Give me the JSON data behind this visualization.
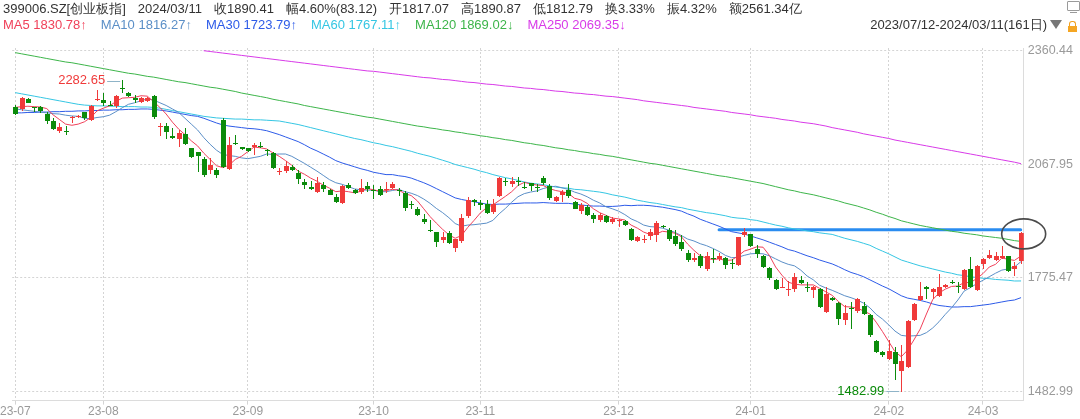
{
  "chart_data": {
    "type": "candlestick",
    "title": "399006.SZ[创业板指]",
    "subtitle": "2023/07/12-2024/03/11(161日)",
    "annotations": [
      "2024/03/11",
      "收1890.41",
      "幅4.60%(83.12)",
      "开1817.07",
      "高1890.87",
      "低1812.79",
      "换3.33%",
      "振4.32%",
      "额2561.34亿"
    ],
    "categories": [
      "23-07",
      null,
      null,
      null,
      null,
      null,
      null,
      null,
      null,
      null,
      null,
      null,
      null,
      null,
      "23-08",
      null,
      null,
      null,
      null,
      null,
      null,
      null,
      null,
      null,
      null,
      null,
      null,
      null,
      null,
      null,
      null,
      null,
      null,
      null,
      null,
      null,
      null,
      "23-09",
      null,
      null,
      null,
      null,
      null,
      null,
      null,
      null,
      null,
      null,
      null,
      null,
      null,
      null,
      null,
      null,
      null,
      null,
      null,
      "23-10",
      null,
      null,
      null,
      null,
      null,
      null,
      null,
      null,
      null,
      null,
      null,
      null,
      null,
      null,
      null,
      null,
      "23-11",
      null,
      null,
      null,
      null,
      null,
      null,
      null,
      null,
      null,
      null,
      null,
      null,
      null,
      null,
      null,
      null,
      null,
      null,
      null,
      null,
      null,
      "23-12",
      null,
      null,
      null,
      null,
      null,
      null,
      null,
      null,
      null,
      null,
      null,
      null,
      null,
      null,
      null,
      null,
      null,
      null,
      null,
      null,
      "24-01",
      null,
      null,
      null,
      null,
      null,
      null,
      null,
      null,
      null,
      null,
      null,
      null,
      null,
      null,
      null,
      null,
      null,
      null,
      null,
      null,
      null,
      "24-02",
      null,
      null,
      null,
      null,
      null,
      null,
      null,
      null,
      null,
      null,
      null,
      null,
      null,
      null,
      "24-03",
      null,
      null,
      null,
      null,
      null,
      null
    ],
    "ylim": [
      1459,
      2367
    ],
    "yticks": [
      1482.99,
      1775.47,
      2067.95,
      2360.44
    ],
    "grid": true,
    "legend": "top left",
    "ohlc": [
      [
        2216,
        2219,
        2195,
        2197
      ],
      [
        2208,
        2240,
        2206,
        2238
      ],
      [
        2236,
        2236,
        2226,
        2226
      ],
      [
        2215,
        2215,
        2203,
        2211
      ],
      [
        2215,
        2216,
        2202,
        2203
      ],
      [
        2197,
        2200,
        2172,
        2178
      ],
      [
        2180,
        2186,
        2156,
        2159
      ],
      [
        2153,
        2172,
        2150,
        2163
      ],
      [
        2154,
        2166,
        2144,
        2151
      ],
      [
        2186,
        2191,
        2176,
        2191
      ],
      [
        2188,
        2192,
        2188,
        2192
      ],
      [
        2202,
        2202,
        2183,
        2186
      ],
      [
        2180,
        2219,
        2180,
        2219
      ],
      [
        2233,
        2258,
        2233,
        2236
      ],
      [
        2234,
        2249,
        2219,
        2226
      ],
      [
        2222,
        2229,
        2221,
        2221
      ],
      [
        2216,
        2245,
        2215,
        2243
      ],
      [
        2265,
        2282.65,
        2252,
        2262
      ],
      [
        2253,
        2253,
        2243,
        2243
      ],
      [
        2239,
        2245,
        2227,
        2232
      ],
      [
        2227,
        2240,
        2227,
        2240
      ],
      [
        2229,
        2240,
        2229,
        2240
      ],
      [
        2243,
        2245,
        2186,
        2189
      ],
      [
        2163,
        2172,
        2142,
        2167
      ],
      [
        2167,
        2172,
        2133,
        2150
      ],
      [
        2140,
        2159,
        2133,
        2135
      ],
      [
        2131,
        2154,
        2114,
        2148
      ],
      [
        2146,
        2159,
        2118,
        2120
      ],
      [
        2109,
        2109,
        2086,
        2086
      ],
      [
        2099,
        2099,
        2049,
        2088
      ],
      [
        2083,
        2086,
        2037,
        2039
      ],
      [
        2051,
        2082,
        2043,
        2066
      ],
      [
        2054,
        2057,
        2034,
        2040
      ],
      [
        2183,
        2185,
        2058,
        2060
      ],
      [
        2056,
        2137,
        2054,
        2118
      ],
      [
        2122,
        2142,
        2118,
        2118
      ],
      [
        2112,
        2112,
        2105,
        2105
      ],
      [
        2109,
        2109,
        2100,
        2100
      ],
      [
        2111,
        2121,
        2092,
        2118
      ],
      [
        2114,
        2123,
        2111,
        2111
      ],
      [
        2105,
        2105,
        2090,
        2101
      ],
      [
        2097,
        2099,
        2056,
        2057
      ],
      [
        2048,
        2057,
        2040,
        2051
      ],
      [
        2050,
        2075,
        2047,
        2063
      ],
      [
        2062,
        2064,
        2051,
        2053
      ],
      [
        2045,
        2051,
        2017,
        2028
      ],
      [
        2023,
        2028,
        2006,
        2013
      ],
      [
        2010,
        2023,
        2003,
        2003
      ],
      [
        1996,
        2034,
        1994,
        2021
      ],
      [
        2015,
        2020,
        1997,
        2004
      ],
      [
        2002,
        2002,
        1989,
        1989
      ],
      [
        1983,
        1991,
        1968,
        1970
      ],
      [
        1966,
        2013,
        1966,
        2013
      ],
      [
        2015,
        2017,
        2004,
        2007
      ],
      [
        2002,
        2002,
        1993,
        1993
      ],
      [
        1996,
        2028,
        1993,
        2006
      ],
      [
        2013,
        2020,
        1997,
        2004
      ],
      [
        2003,
        2013,
        1980,
        1999
      ],
      [
        2004,
        2011,
        1987,
        1989
      ],
      [
        2001,
        2021,
        1994,
        2004
      ],
      [
        2006,
        2021,
        2004,
        2018
      ],
      [
        2003,
        2006,
        1987,
        1997
      ],
      [
        1994,
        1997,
        1948,
        1954
      ],
      [
        1965,
        1972,
        1953,
        1961
      ],
      [
        1953,
        1956,
        1936,
        1937
      ],
      [
        1927,
        1937,
        1914,
        1917
      ],
      [
        1900,
        1923,
        1894,
        1897
      ],
      [
        1893,
        1893,
        1857,
        1867
      ],
      [
        1873,
        1893,
        1865,
        1882
      ],
      [
        1891,
        1894,
        1863,
        1865
      ],
      [
        1852,
        1875,
        1843,
        1875
      ],
      [
        1870,
        1937,
        1867,
        1929
      ],
      [
        1934,
        1983,
        1931,
        1976
      ],
      [
        1976,
        1978,
        1961,
        1970
      ],
      [
        1968,
        1974,
        1951,
        1961
      ],
      [
        1966,
        1974,
        1940,
        1942
      ],
      [
        1944,
        1977,
        1942,
        1967
      ],
      [
        1985,
        2034,
        1984,
        2032
      ],
      [
        2025,
        2030,
        2013,
        2021
      ],
      [
        2017,
        2034,
        2011,
        2024
      ],
      [
        2024,
        2034,
        2013,
        2021
      ],
      [
        2009,
        2020,
        2006,
        2006
      ],
      [
        2019,
        2019,
        2000,
        2012
      ],
      [
        2009,
        2015,
        1997,
        2006
      ],
      [
        2032,
        2035,
        2016,
        2019
      ],
      [
        2013,
        2016,
        1978,
        1980
      ],
      [
        1972,
        1985,
        1972,
        1985
      ],
      [
        1989,
        1999,
        1972,
        1996
      ],
      [
        2003,
        2015,
        1982,
        1985
      ],
      [
        1972,
        1972,
        1953,
        1953
      ],
      [
        1946,
        1966,
        1940,
        1963
      ],
      [
        1959,
        1961,
        1936,
        1937
      ],
      [
        1937,
        1940,
        1917,
        1927
      ],
      [
        1923,
        1940,
        1920,
        1937
      ],
      [
        1934,
        1936,
        1917,
        1918
      ],
      [
        1917,
        1930,
        1915,
        1927
      ],
      [
        1923,
        1926,
        1908,
        1926
      ],
      [
        1923,
        1923,
        1910,
        1910
      ],
      [
        1901,
        1901,
        1872,
        1872
      ],
      [
        1869,
        1882,
        1869,
        1882
      ],
      [
        1875,
        1884,
        1865,
        1877
      ],
      [
        1882,
        1899,
        1875,
        1893
      ],
      [
        1884,
        1920,
        1869,
        1917
      ],
      [
        1910,
        1910,
        1905,
        1905
      ],
      [
        1899,
        1901,
        1872,
        1874
      ],
      [
        1884,
        1897,
        1858,
        1861
      ],
      [
        1869,
        1884,
        1845,
        1848
      ],
      [
        1839,
        1845,
        1817,
        1820
      ],
      [
        1820,
        1837,
        1817,
        1827
      ],
      [
        1831,
        1834,
        1802,
        1804
      ],
      [
        1796,
        1841,
        1793,
        1831
      ],
      [
        1828,
        1848,
        1815,
        1826
      ],
      [
        1822,
        1837,
        1820,
        1831
      ],
      [
        1828,
        1828,
        1800,
        1808
      ],
      [
        1813,
        1822,
        1798,
        1809
      ],
      [
        1807,
        1880,
        1807,
        1880
      ],
      [
        1884,
        1901,
        1882,
        1893
      ],
      [
        1888,
        1888,
        1857,
        1857
      ],
      [
        1851,
        1858,
        1828,
        1837
      ],
      [
        1832,
        1832,
        1802,
        1802
      ],
      [
        1800,
        1802,
        1772,
        1774
      ],
      [
        1771,
        1771,
        1745,
        1745
      ],
      [
        1749,
        1774,
        1749,
        1752
      ],
      [
        1744,
        1765,
        1729,
        1747
      ],
      [
        1747,
        1787,
        1740,
        1777
      ],
      [
        1771,
        1779,
        1760,
        1762
      ],
      [
        1753,
        1762,
        1741,
        1748
      ],
      [
        1742,
        1753,
        1725,
        1753
      ],
      [
        1748,
        1748,
        1698,
        1699
      ],
      [
        1686,
        1751,
        1686,
        1734
      ],
      [
        1725,
        1725,
        1717,
        1717
      ],
      [
        1711,
        1711,
        1656,
        1668
      ],
      [
        1665,
        1704,
        1656,
        1686
      ],
      [
        1697,
        1712,
        1644,
        1693
      ],
      [
        1688,
        1721,
        1686,
        1721
      ],
      [
        1704,
        1712,
        1680,
        1682
      ],
      [
        1680,
        1680,
        1625,
        1626
      ],
      [
        1613,
        1613,
        1582,
        1583
      ],
      [
        1585,
        1585,
        1573,
        1575
      ],
      [
        1566,
        1613,
        1566,
        1588
      ],
      [
        1585,
        1596,
        1513,
        1553
      ],
      [
        1534,
        1601,
        1482.99,
        1562
      ],
      [
        1545,
        1665,
        1545,
        1665
      ],
      [
        1665,
        1708,
        1665,
        1708
      ],
      [
        1717,
        1764,
        1717,
        1728
      ],
      [
        1751,
        1753,
        1723,
        1747
      ],
      [
        1738,
        1747,
        1721,
        1747
      ],
      [
        1729,
        1783,
        1728,
        1751
      ],
      [
        1751,
        1758,
        1751,
        1758
      ],
      [
        1765,
        1767,
        1760,
        1760
      ],
      [
        1755,
        1764,
        1738,
        1752
      ],
      [
        1747,
        1796,
        1745,
        1796
      ],
      [
        1798,
        1828,
        1751,
        1751
      ],
      [
        1742,
        1807,
        1742,
        1807
      ],
      [
        1811,
        1824,
        1798,
        1824
      ],
      [
        1826,
        1845,
        1826,
        1835
      ],
      [
        1820,
        1841,
        1820,
        1832
      ],
      [
        1826,
        1857,
        1826,
        1831
      ],
      [
        1831,
        1831,
        1791,
        1793
      ],
      [
        1796,
        1814,
        1781,
        1807
      ],
      [
        1817.07,
        1890.87,
        1812.79,
        1890.41
      ]
    ],
    "value_labels": [
      null,
      null,
      null,
      null,
      null,
      null,
      null,
      null,
      null,
      null,
      null,
      null,
      null,
      null,
      null,
      null,
      null,
      "2282.65",
      null,
      null,
      null,
      null,
      null,
      null,
      null,
      null,
      null,
      null,
      null,
      null,
      null,
      null,
      null,
      null,
      null,
      null,
      null,
      null,
      null,
      null,
      null,
      null,
      null,
      null,
      null,
      null,
      null,
      null,
      null,
      null,
      null,
      null,
      null,
      null,
      null,
      null,
      null,
      null,
      null,
      null,
      null,
      null,
      null,
      null,
      null,
      null,
      null,
      null,
      null,
      null,
      null,
      null,
      null,
      null,
      null,
      null,
      null,
      null,
      null,
      null,
      null,
      null,
      null,
      null,
      null,
      null,
      null,
      null,
      null,
      null,
      null,
      null,
      null,
      null,
      null,
      null,
      null,
      null,
      null,
      null,
      null,
      null,
      null,
      null,
      null,
      null,
      null,
      null,
      null,
      null,
      null,
      null,
      null,
      null,
      null,
      null,
      null,
      null,
      null,
      null,
      null,
      null,
      null,
      null,
      null,
      null,
      null,
      null,
      null,
      null,
      null,
      null,
      null,
      null,
      null,
      null,
      null,
      null,
      null,
      null,
      null,
      "1482.99",
      null,
      null,
      null,
      null,
      null,
      null,
      null,
      null,
      null,
      null,
      null,
      null,
      null,
      null,
      null,
      null,
      null,
      null,
      null
    ],
    "colors": [
      "#0b8b0b",
      "#f03a3a",
      "#0b8b0b",
      "#0b8b0b",
      "#0b8b0b",
      "#0b8b0b",
      "#0b8b0b",
      "#f03a3a",
      "#0b8b0b",
      "#f03a3a",
      "#f03a3a",
      "#0b8b0b",
      "#f03a3a",
      "#f03a3a",
      "#0b8b0b",
      "#0b8b0b",
      "#f03a3a",
      "#0b8b0b",
      "#0b8b0b",
      "#0b8b0b",
      "#f03a3a",
      "#f03a3a",
      "#0b8b0b",
      "#f03a3a",
      "#0b8b0b",
      "#0b8b0b",
      "#f03a3a",
      "#0b8b0b",
      "#0b8b0b",
      "#0b8b0b",
      "#0b8b0b",
      "#f03a3a",
      "#0b8b0b",
      "#0b8b0b",
      "#f03a3a",
      "#0b8b0b",
      "#0b8b0b",
      "#0b8b0b",
      "#f03a3a",
      "#0b8b0b",
      "#0b8b0b",
      "#0b8b0b",
      "#f03a3a",
      "#f03a3a",
      "#0b8b0b",
      "#0b8b0b",
      "#0b8b0b",
      "#0b8b0b",
      "#f03a3a",
      "#0b8b0b",
      "#0b8b0b",
      "#0b8b0b",
      "#f03a3a",
      "#0b8b0b",
      "#0b8b0b",
      "#f03a3a",
      "#0b8b0b",
      "#0b8b0b",
      "#0b8b0b",
      "#f03a3a",
      "#f03a3a",
      "#0b8b0b",
      "#0b8b0b",
      "#0b8b0b",
      "#0b8b0b",
      "#0b8b0b",
      "#0b8b0b",
      "#0b8b0b",
      "#f03a3a",
      "#0b8b0b",
      "#f03a3a",
      "#f03a3a",
      "#f03a3a",
      "#0b8b0b",
      "#0b8b0b",
      "#0b8b0b",
      "#f03a3a",
      "#f03a3a",
      "#0b8b0b",
      "#f03a3a",
      "#0b8b0b",
      "#0b8b0b",
      "#0b8b0b",
      "#0b8b0b",
      "#0b8b0b",
      "#0b8b0b",
      "#f03a3a",
      "#f03a3a",
      "#0b8b0b",
      "#0b8b0b",
      "#f03a3a",
      "#0b8b0b",
      "#0b8b0b",
      "#f03a3a",
      "#0b8b0b",
      "#f03a3a",
      "#f03a3a",
      "#0b8b0b",
      "#0b8b0b",
      "#f03a3a",
      "#f03a3a",
      "#f03a3a",
      "#f03a3a",
      "#0b8b0b",
      "#0b8b0b",
      "#0b8b0b",
      "#0b8b0b",
      "#0b8b0b",
      "#f03a3a",
      "#0b8b0b",
      "#f03a3a",
      "#0b8b0b",
      "#f03a3a",
      "#0b8b0b",
      "#0b8b0b",
      "#f03a3a",
      "#f03a3a",
      "#0b8b0b",
      "#0b8b0b",
      "#0b8b0b",
      "#0b8b0b",
      "#0b8b0b",
      "#f03a3a",
      "#f03a3a",
      "#f03a3a",
      "#0b8b0b",
      "#0b8b0b",
      "#f03a3a",
      "#0b8b0b",
      "#f03a3a",
      "#0b8b0b",
      "#0b8b0b",
      "#f03a3a",
      "#0b8b0b",
      "#f03a3a",
      "#0b8b0b",
      "#0b8b0b",
      "#0b8b0b",
      "#0b8b0b",
      "#f03a3a",
      "#0b8b0b",
      "#f03a3a",
      "#f03a3a",
      "#f03a3a",
      "#f03a3a",
      "#0b8b0b",
      "#f03a3a",
      "#f03a3a",
      "#f03a3a",
      "#0b8b0b",
      "#0b8b0b",
      "#f03a3a",
      "#0b8b0b",
      "#f03a3a",
      "#f03a3a",
      "#f03a3a",
      "#f03a3a",
      "#f03a3a",
      "#0b8b0b",
      "#f03a3a",
      "#f03a3a"
    ],
    "series": [
      {
        "type": "line",
        "name": "MA5 1830.78↑",
        "color": "#f0415a",
        "values": [
          2214,
          2216,
          2217,
          2216,
          2215,
          2211,
          2195,
          2183,
          2171,
          2168,
          2171,
          2177,
          2188,
          2205,
          2212,
          2218,
          2229,
          2238,
          2239,
          2240,
          2244,
          2243,
          2229,
          2214,
          2197,
          2176,
          2158,
          2144,
          2128,
          2115,
          2096,
          2080,
          2064,
          2059,
          2065,
          2080,
          2088,
          2100,
          2112,
          2110,
          2107,
          2097,
          2088,
          2077,
          2065,
          2050,
          2042,
          2032,
          2024,
          2014,
          2006,
          1997,
          1999,
          1997,
          1994,
          1998,
          2005,
          2002,
          1998,
          2000,
          2003,
          2001,
          1992,
          1987,
          1973,
          1953,
          1933,
          1916,
          1900,
          1886,
          1877,
          1884,
          1905,
          1923,
          1942,
          1956,
          1963,
          1974,
          1985,
          1997,
          2013,
          2021,
          2017,
          2014,
          2013,
          2005,
          2000,
          1997,
          1993,
          1980,
          1976,
          1967,
          1953,
          1943,
          1936,
          1929,
          1927,
          1924,
          1911,
          1903,
          1893,
          1887,
          1888,
          1895,
          1893,
          1890,
          1881,
          1862,
          1846,
          1832,
          1826,
          1822,
          1824,
          1820,
          1821,
          1831,
          1844,
          1849,
          1855,
          1854,
          1833,
          1803,
          1782,
          1764,
          1759,
          1757,
          1757,
          1757,
          1748,
          1739,
          1730,
          1714,
          1701,
          1700,
          1697,
          1690,
          1682,
          1661,
          1637,
          1611,
          1585,
          1572,
          1589,
          1615,
          1643,
          1682,
          1719,
          1736,
          1746,
          1753,
          1754,
          1763,
          1763,
          1773,
          1786,
          1803,
          1810,
          1826,
          1823,
          1820,
          1830.78
        ]
      },
      {
        "type": "line",
        "name": "MA10 1816.27↑",
        "color": "#5b8fc7",
        "values": [
          2210,
          2208,
          2206,
          2204,
          2202,
          2200,
          2198,
          2197,
          2194,
          2192,
          2191,
          2186,
          2185,
          2188,
          2190,
          2194,
          2203,
          2213,
          2222,
          2226,
          2231,
          2236,
          2233,
          2226,
          2219,
          2210,
          2201,
          2186,
          2171,
          2156,
          2136,
          2119,
          2104,
          2093,
          2090,
          2088,
          2084,
          2082,
          2085,
          2088,
          2094,
          2093,
          2094,
          2094,
          2088,
          2079,
          2070,
          2060,
          2050,
          2039,
          2028,
          2020,
          2016,
          2010,
          2004,
          2002,
          2001,
          2001,
          1997,
          1997,
          2000,
          2003,
          1997,
          1993,
          1987,
          1978,
          1967,
          1954,
          1943,
          1930,
          1915,
          1908,
          1911,
          1912,
          1914,
          1916,
          1923,
          1940,
          1954,
          1970,
          1984,
          1992,
          1996,
          1999,
          2005,
          2009,
          2011,
          2007,
          2003,
          1996,
          1991,
          1984,
          1975,
          1968,
          1958,
          1953,
          1947,
          1938,
          1927,
          1920,
          1911,
          1907,
          1906,
          1903,
          1898,
          1892,
          1884,
          1875,
          1870,
          1863,
          1858,
          1851,
          1843,
          1833,
          1827,
          1828,
          1833,
          1837,
          1838,
          1837,
          1832,
          1824,
          1816,
          1810,
          1806,
          1795,
          1780,
          1770,
          1756,
          1749,
          1743,
          1736,
          1729,
          1724,
          1718,
          1710,
          1698,
          1681,
          1669,
          1654,
          1638,
          1627,
          1625,
          1626,
          1627,
          1634,
          1646,
          1662,
          1681,
          1698,
          1718,
          1741,
          1750,
          1760,
          1769,
          1778,
          1787,
          1795,
          1798,
          1803,
          1816.27
        ]
      },
      {
        "type": "line",
        "name": "MA30 1723.79↑",
        "color": "#2d5be8",
        "values": [
          2200,
          2200,
          2201,
          2201,
          2202,
          2202,
          2203,
          2203,
          2204,
          2204,
          2205,
          2205,
          2206,
          2206,
          2207,
          2207,
          2208,
          2208,
          2209,
          2209,
          2210,
          2210,
          2209,
          2207,
          2205,
          2202,
          2199,
          2196,
          2193,
          2191,
          2186,
          2180,
          2174,
          2169,
          2166,
          2164,
          2162,
          2160,
          2159,
          2157,
          2154,
          2149,
          2144,
          2138,
          2132,
          2126,
          2118,
          2109,
          2102,
          2094,
          2086,
          2077,
          2071,
          2066,
          2061,
          2056,
          2052,
          2047,
          2044,
          2041,
          2041,
          2038,
          2036,
          2032,
          2026,
          2020,
          2013,
          2005,
          1997,
          1989,
          1981,
          1977,
          1974,
          1971,
          1968,
          1965,
          1964,
          1965,
          1965,
          1966,
          1967,
          1968,
          1968,
          1968,
          1969,
          1968,
          1967,
          1967,
          1967,
          1965,
          1963,
          1961,
          1960,
          1960,
          1959,
          1959,
          1960,
          1962,
          1961,
          1962,
          1962,
          1961,
          1959,
          1957,
          1954,
          1951,
          1947,
          1940,
          1934,
          1926,
          1920,
          1914,
          1908,
          1901,
          1894,
          1891,
          1888,
          1883,
          1878,
          1873,
          1867,
          1861,
          1855,
          1848,
          1844,
          1838,
          1832,
          1827,
          1821,
          1816,
          1811,
          1804,
          1796,
          1789,
          1784,
          1778,
          1770,
          1762,
          1754,
          1747,
          1738,
          1729,
          1723,
          1720,
          1717,
          1713,
          1708,
          1704,
          1702,
          1700,
          1700,
          1701,
          1701,
          1703,
          1705,
          1707,
          1710,
          1713,
          1716,
          1718,
          1723.79
        ]
      },
      {
        "type": "line",
        "name": "MA60 1767.11↑",
        "color": "#35c6e3",
        "values": [
          2252,
          2249,
          2246,
          2243,
          2240,
          2237,
          2234,
          2231,
          2228,
          2225,
          2222,
          2220,
          2219,
          2218,
          2218,
          2217,
          2217,
          2216,
          2216,
          2216,
          2215,
          2215,
          2214,
          2212,
          2209,
          2206,
          2203,
          2200,
          2197,
          2194,
          2191,
          2189,
          2187,
          2186,
          2185,
          2184,
          2184,
          2183,
          2182,
          2182,
          2181,
          2180,
          2179,
          2176,
          2173,
          2170,
          2166,
          2162,
          2158,
          2154,
          2150,
          2146,
          2142,
          2138,
          2134,
          2131,
          2127,
          2123,
          2120,
          2116,
          2113,
          2109,
          2105,
          2101,
          2096,
          2092,
          2088,
          2083,
          2078,
          2073,
          2067,
          2063,
          2059,
          2055,
          2050,
          2046,
          2041,
          2037,
          2033,
          2030,
          2026,
          2022,
          2019,
          2017,
          2015,
          2012,
          2009,
          2007,
          2006,
          2003,
          2002,
          2000,
          1998,
          1996,
          1993,
          1989,
          1986,
          1983,
          1979,
          1975,
          1972,
          1969,
          1967,
          1964,
          1961,
          1958,
          1956,
          1952,
          1949,
          1946,
          1943,
          1941,
          1938,
          1935,
          1931,
          1929,
          1928,
          1925,
          1923,
          1919,
          1915,
          1911,
          1908,
          1904,
          1901,
          1899,
          1896,
          1894,
          1891,
          1889,
          1887,
          1882,
          1877,
          1873,
          1869,
          1864,
          1859,
          1851,
          1844,
          1837,
          1829,
          1821,
          1816,
          1811,
          1806,
          1802,
          1798,
          1794,
          1790,
          1787,
          1783,
          1781,
          1778,
          1776,
          1774,
          1773,
          1771,
          1770,
          1769,
          1767,
          1767.11
        ]
      },
      {
        "type": "line",
        "name": "MA120 1869.02↓",
        "color": "#3db54a",
        "values": [
          2355,
          2352,
          2349,
          2346,
          2343,
          2340,
          2337,
          2334,
          2331,
          2329,
          2326,
          2323,
          2320,
          2317,
          2314,
          2311,
          2308,
          2305,
          2302,
          2300,
          2297,
          2294,
          2292,
          2289,
          2286,
          2283,
          2280,
          2278,
          2275,
          2272,
          2269,
          2266,
          2264,
          2261,
          2258,
          2255,
          2251,
          2248,
          2245,
          2242,
          2239,
          2235,
          2232,
          2229,
          2226,
          2223,
          2219,
          2216,
          2213,
          2210,
          2207,
          2204,
          2201,
          2198,
          2195,
          2192,
          2189,
          2187,
          2184,
          2181,
          2178,
          2175,
          2172,
          2169,
          2166,
          2164,
          2161,
          2159,
          2156,
          2154,
          2151,
          2149,
          2146,
          2144,
          2141,
          2139,
          2136,
          2134,
          2131,
          2129,
          2126,
          2123,
          2121,
          2118,
          2116,
          2113,
          2110,
          2108,
          2105,
          2103,
          2100,
          2098,
          2095,
          2093,
          2090,
          2088,
          2085,
          2082,
          2079,
          2076,
          2073,
          2070,
          2068,
          2065,
          2062,
          2059,
          2056,
          2053,
          2050,
          2047,
          2044,
          2041,
          2038,
          2036,
          2033,
          2030,
          2027,
          2024,
          2021,
          2018,
          2014,
          2010,
          2006,
          2002,
          1999,
          1995,
          1992,
          1989,
          1985,
          1981,
          1977,
          1973,
          1968,
          1964,
          1960,
          1955,
          1950,
          1944,
          1939,
          1933,
          1928,
          1922,
          1918,
          1914,
          1910,
          1907,
          1904,
          1901,
          1898,
          1895,
          1893,
          1890,
          1888,
          1886,
          1883,
          1881,
          1879,
          1877,
          1874,
          1871,
          1869.02
        ]
      },
      {
        "type": "line",
        "name": "MA250 2069.35↓",
        "color": "#d83ae8",
        "values": [
          null,
          null,
          null,
          null,
          null,
          null,
          null,
          null,
          null,
          null,
          null,
          null,
          null,
          null,
          null,
          null,
          null,
          null,
          null,
          null,
          null,
          null,
          null,
          null,
          null,
          null,
          null,
          null,
          null,
          null,
          2360,
          2358,
          2356,
          2354,
          2352,
          2350,
          2348,
          2346,
          2344,
          2342,
          2340,
          2338,
          2336,
          2334,
          2332,
          2330,
          2328,
          2326,
          2324,
          2322,
          2320,
          2318,
          2316,
          2314,
          2312,
          2310,
          2308,
          2307,
          2305,
          2303,
          2301,
          2299,
          2297,
          2295,
          2293,
          2291,
          2290,
          2288,
          2286,
          2285,
          2283,
          2281,
          2279,
          2278,
          2276,
          2274,
          2273,
          2271,
          2269,
          2268,
          2266,
          2264,
          2263,
          2261,
          2260,
          2258,
          2256,
          2255,
          2253,
          2251,
          2250,
          2248,
          2247,
          2245,
          2243,
          2242,
          2240,
          2238,
          2236,
          2234,
          2231,
          2229,
          2227,
          2225,
          2223,
          2221,
          2219,
          2217,
          2214,
          2212,
          2210,
          2208,
          2206,
          2204,
          2201,
          2199,
          2197,
          2195,
          2192,
          2190,
          2188,
          2186,
          2183,
          2181,
          2179,
          2176,
          2174,
          2172,
          2169,
          2166,
          2162,
          2159,
          2156,
          2153,
          2150,
          2146,
          2143,
          2140,
          2137,
          2134,
          2130,
          2127,
          2124,
          2121,
          2118,
          2115,
          2112,
          2109,
          2106,
          2103,
          2100,
          2097,
          2094,
          2091,
          2088,
          2085,
          2082,
          2079,
          2076,
          2073,
          2069.35
        ]
      },
      {
        "type": "line",
        "color": "#2a8cf0",
        "values": [
          null,
          null,
          null,
          null,
          null,
          null,
          null,
          null,
          null,
          null,
          null,
          null,
          null,
          null,
          null,
          null,
          null,
          null,
          null,
          null,
          null,
          null,
          null,
          null,
          null,
          null,
          null,
          null,
          null,
          null,
          null,
          null,
          null,
          null,
          null,
          null,
          null,
          null,
          null,
          null,
          null,
          null,
          null,
          null,
          null,
          null,
          null,
          null,
          null,
          null,
          null,
          null,
          null,
          null,
          null,
          null,
          null,
          null,
          null,
          null,
          null,
          null,
          null,
          null,
          null,
          null,
          null,
          null,
          null,
          null,
          null,
          null,
          null,
          null,
          null,
          null,
          null,
          null,
          null,
          null,
          null,
          null,
          null,
          null,
          null,
          null,
          null,
          null,
          null,
          null,
          null,
          null,
          null,
          null,
          null,
          null,
          null,
          null,
          null,
          null,
          null,
          null,
          null,
          null,
          null,
          null,
          null,
          null,
          null,
          null,
          null,
          null,
          1899,
          1899,
          1899,
          1899,
          1899,
          1899,
          1899,
          1899,
          1899,
          1899,
          1899,
          1899,
          1899,
          1899,
          1899,
          1899,
          1899,
          1899,
          1899,
          1899,
          1899,
          1899,
          1899,
          1899,
          1899,
          1899,
          1899,
          1899,
          1899,
          1899,
          1899,
          1899,
          1899,
          1899,
          1899,
          1899,
          1899,
          1899,
          1899,
          1899,
          1899,
          1899,
          1899,
          1899,
          1899,
          1899,
          1899,
          1899,
          1899
        ]
      }
    ]
  }
}
